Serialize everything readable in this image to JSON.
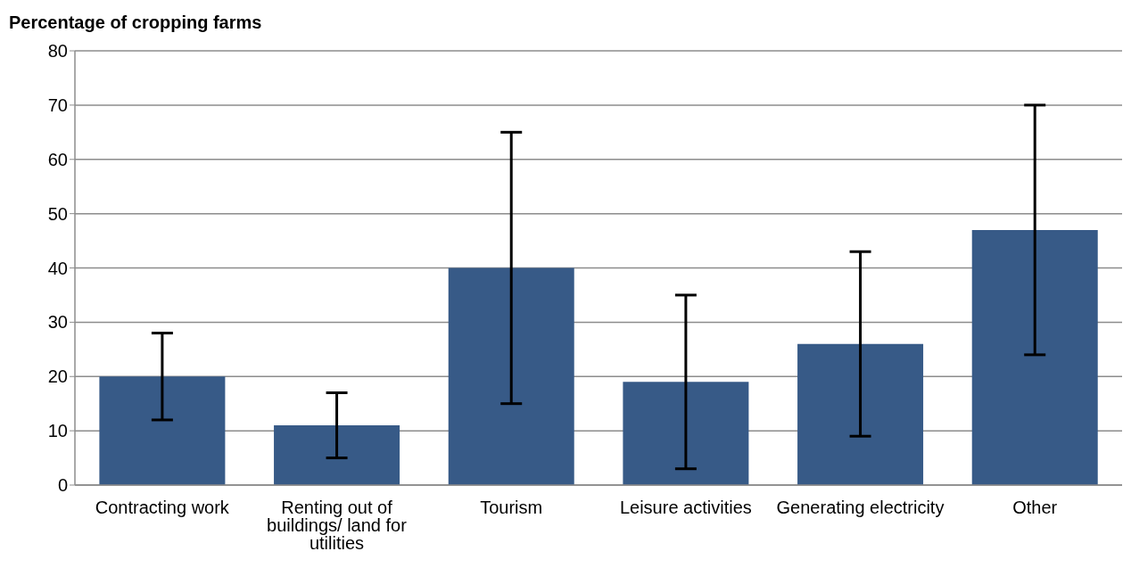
{
  "chart_data": {
    "type": "bar",
    "ylabel": "Percentage of cropping farms",
    "categories": [
      "Contracting work",
      "Renting out of buildings/ land for utilities",
      "Tourism",
      "Leisure activities",
      "Generating electricity",
      "Other"
    ],
    "values": [
      20,
      11,
      40,
      19,
      26,
      47
    ],
    "errors": [
      8,
      6,
      25,
      16,
      17,
      23
    ],
    "color": "#375a87",
    "ylim": [
      0,
      80
    ],
    "yticks": [
      0,
      10,
      20,
      30,
      40,
      50,
      60,
      70,
      80
    ],
    "grid": "y",
    "legend": false
  }
}
